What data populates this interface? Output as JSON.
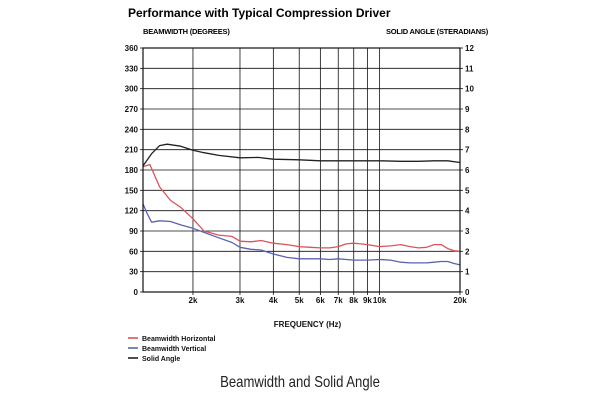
{
  "page_title": "Performance with Typical Compression Driver",
  "caption": "Beamwidth and Solid Angle",
  "chart_data": {
    "type": "line",
    "x_scale": "log",
    "xlabel": "FREQUENCY (Hz)",
    "ylabel": "BEAMWIDTH (DEGREES)",
    "y2label": "SOLID ANGLE (STERADIANS)",
    "xlim": [
      1300,
      20000
    ],
    "ylim": [
      0,
      360
    ],
    "y2lim": [
      0,
      12
    ],
    "grid": true,
    "legend_position": "bottom-left",
    "x_ticks": [
      {
        "value": 2000,
        "label": "2k"
      },
      {
        "value": 3000,
        "label": "3k"
      },
      {
        "value": 4000,
        "label": "4k"
      },
      {
        "value": 5000,
        "label": "5k"
      },
      {
        "value": 6000,
        "label": "6k"
      },
      {
        "value": 7000,
        "label": "7k"
      },
      {
        "value": 8000,
        "label": "8k"
      },
      {
        "value": 9000,
        "label": "9k"
      },
      {
        "value": 10000,
        "label": "10k"
      },
      {
        "value": 20000,
        "label": "20k"
      }
    ],
    "y_ticks": [
      "0",
      "30",
      "60",
      "90",
      "120",
      "150",
      "180",
      "210",
      "240",
      "270",
      "300",
      "330",
      "360"
    ],
    "y2_ticks": [
      "0",
      "1",
      "2",
      "3",
      "4",
      "5",
      "6",
      "7",
      "8",
      "9",
      "10",
      "11",
      "12"
    ],
    "series": [
      {
        "name": "Beamwidth Horizontal",
        "color": "#d9545e",
        "axis": "left",
        "x": [
          1300,
          1380,
          1500,
          1650,
          1800,
          2000,
          2200,
          2500,
          2800,
          3000,
          3300,
          3600,
          4000,
          4500,
          5000,
          5500,
          6000,
          6500,
          7000,
          7500,
          8000,
          8500,
          9000,
          10000,
          11000,
          12000,
          13000,
          14000,
          15000,
          16000,
          17000,
          18000,
          19000,
          20000
        ],
        "values": [
          185,
          188,
          155,
          135,
          125,
          108,
          90,
          84,
          82,
          75,
          74,
          76,
          72,
          70,
          67,
          66,
          65,
          65,
          67,
          71,
          72,
          71,
          70,
          67,
          68,
          70,
          67,
          65,
          66,
          70,
          70,
          64,
          61,
          60
        ]
      },
      {
        "name": "Beamwidth Vertical",
        "color": "#5b62b0",
        "axis": "left",
        "x": [
          1300,
          1350,
          1400,
          1500,
          1650,
          1800,
          2000,
          2200,
          2500,
          2800,
          3000,
          3300,
          3600,
          4000,
          4500,
          5000,
          5500,
          6000,
          6500,
          7000,
          7500,
          8000,
          9000,
          10000,
          11000,
          12000,
          13000,
          14000,
          15000,
          16000,
          17000,
          18000,
          19000,
          20000
        ],
        "values": [
          130,
          115,
          103,
          105,
          104,
          99,
          94,
          88,
          80,
          73,
          66,
          63,
          62,
          56,
          51,
          49,
          49,
          49,
          48,
          49,
          48,
          47,
          47,
          48,
          47,
          44,
          43,
          43,
          43,
          44,
          45,
          45,
          42,
          40
        ]
      },
      {
        "name": "Solid Angle",
        "color": "#222222",
        "axis": "right",
        "x": [
          1300,
          1400,
          1500,
          1600,
          1800,
          2000,
          2200,
          2500,
          3000,
          3500,
          4000,
          5000,
          6000,
          7000,
          8000,
          9000,
          10000,
          12000,
          14000,
          16000,
          18000,
          20000
        ],
        "values": [
          6.2,
          6.8,
          7.2,
          7.27,
          7.17,
          6.97,
          6.85,
          6.72,
          6.6,
          6.62,
          6.53,
          6.5,
          6.45,
          6.45,
          6.45,
          6.45,
          6.45,
          6.43,
          6.43,
          6.45,
          6.45,
          6.37
        ]
      }
    ]
  }
}
